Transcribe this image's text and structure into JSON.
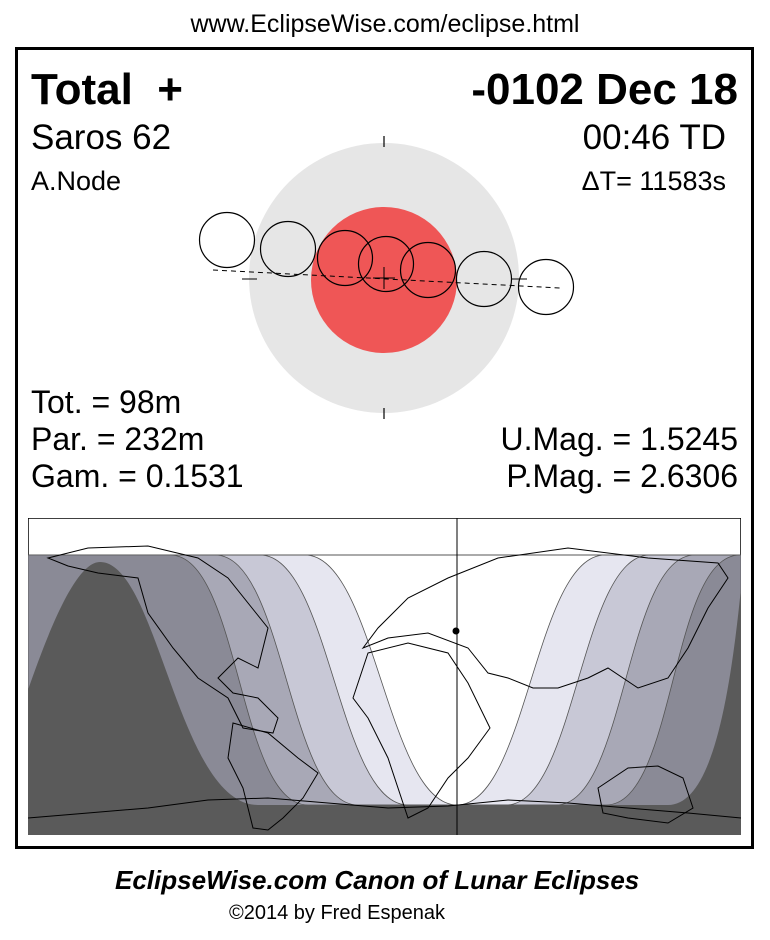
{
  "header_url": "www.EclipseWise.com/eclipse.html",
  "eclipse": {
    "type": "Total",
    "type_symbol": "+",
    "date": "-0102 Dec 18",
    "saros": "Saros  62",
    "time": "00:46 TD",
    "node": "A.Node",
    "delta_t": "ΔT=  11583s",
    "totality": "Tot. =  98m",
    "partial": "Par. = 232m",
    "gamma": "Gam. = 0.1531",
    "umbral_mag": "U.Mag. = 1.5245",
    "penumbral_mag": "P.Mag. = 2.6306"
  },
  "colors": {
    "penumbra": "#e6e6e6",
    "umbra": "#ef5656",
    "map_shades": [
      "#e6e6f0",
      "#c8c8d6",
      "#a8a8b6",
      "#8a8a96",
      "#5a5a5a"
    ]
  },
  "footer": {
    "title": "EclipseWise.com Canon of Lunar Eclipses",
    "copyright": "©2014 by Fred Espenak"
  }
}
